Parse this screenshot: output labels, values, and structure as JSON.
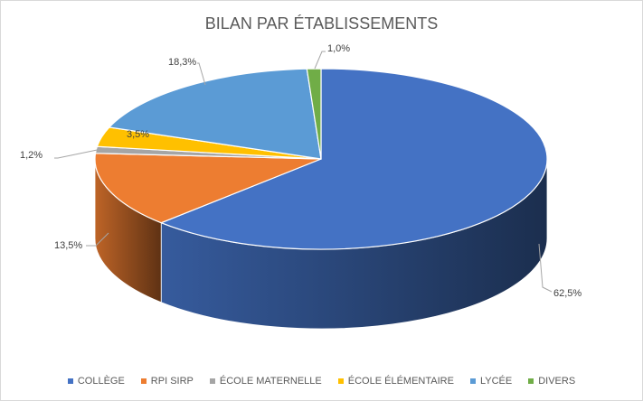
{
  "chart_data": {
    "type": "pie",
    "style": "3d",
    "title": "BILAN PAR ÉTABLISSEMENTS",
    "legend_position": "bottom",
    "categories": [
      "COLLÈGE",
      "RPI SIRP",
      "ÉCOLE MATERNELLE",
      "ÉCOLE ÉLÉMENTAIRE",
      "LYCÉE",
      "DIVERS"
    ],
    "values": [
      62.5,
      13.5,
      1.2,
      3.5,
      18.3,
      1.0
    ],
    "data_labels": [
      "62,5%",
      "13,5%",
      "1,2%",
      "3,5%",
      "18,3%",
      "1,0%"
    ],
    "colors": [
      "#4472c4",
      "#ed7d31",
      "#a5a5a5",
      "#ffc000",
      "#5b9bd5",
      "#70ad47"
    ]
  }
}
